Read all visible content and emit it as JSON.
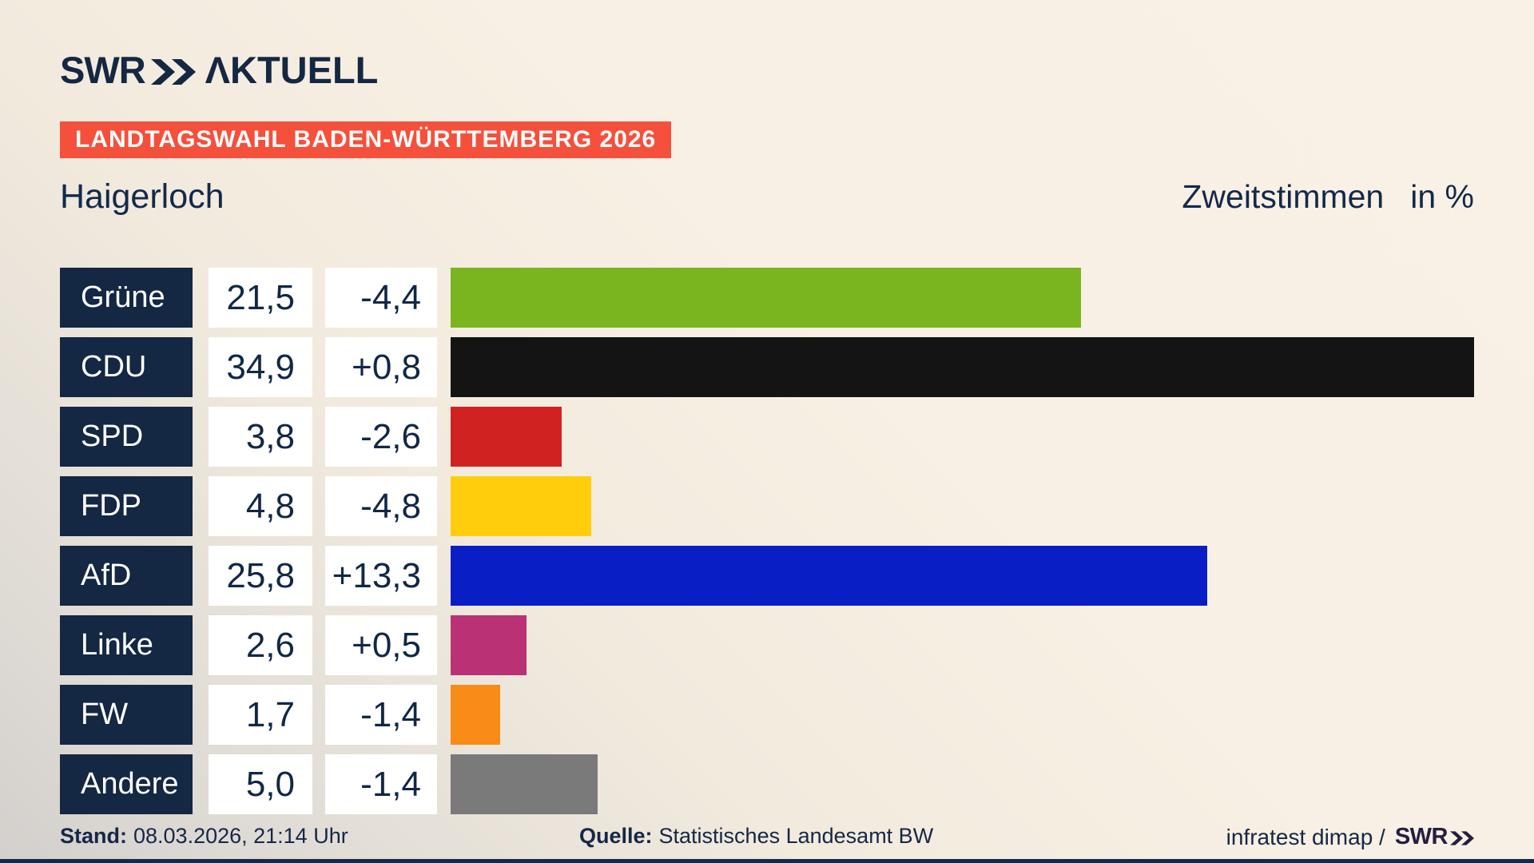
{
  "header": {
    "brand": "SWR",
    "product": "ΛKTUELL"
  },
  "badge": {
    "label": "LANDTAGSWAHL BADEN-WÜRTTEMBERG 2026"
  },
  "title": {
    "region": "Haigerloch",
    "measure": "Zweitstimmen",
    "unit": "in %"
  },
  "chart_data": {
    "type": "bar",
    "orientation": "horizontal",
    "title": "Zweitstimmen in %",
    "region": "Haigerloch",
    "categories": [
      "Grüne",
      "CDU",
      "SPD",
      "FDP",
      "AfD",
      "Linke",
      "FW",
      "Andere"
    ],
    "values": [
      21.5,
      34.9,
      3.8,
      4.8,
      25.8,
      2.6,
      1.7,
      5.0
    ],
    "diffs": [
      -4.4,
      0.8,
      -2.6,
      -4.8,
      13.3,
      0.5,
      -1.4,
      -1.4
    ],
    "bar_colors": [
      "#7ab41e",
      "#141414",
      "#d02321",
      "#ffcd0b",
      "#0a1ec6",
      "#ba3275",
      "#f98b17",
      "#7a7a7a"
    ],
    "xlim": [
      0,
      34.9
    ],
    "grid": false,
    "legend": false,
    "rows": [
      {
        "party": "Grüne",
        "value": 21.5,
        "value_label": "21,5",
        "diff_label": "-4,4",
        "color": "#7ab41e"
      },
      {
        "party": "CDU",
        "value": 34.9,
        "value_label": "34,9",
        "diff_label": "+0,8",
        "color": "#141414"
      },
      {
        "party": "SPD",
        "value": 3.8,
        "value_label": "3,8",
        "diff_label": "-2,6",
        "color": "#d02321"
      },
      {
        "party": "FDP",
        "value": 4.8,
        "value_label": "4,8",
        "diff_label": "-4,8",
        "color": "#ffcd0b"
      },
      {
        "party": "AfD",
        "value": 25.8,
        "value_label": "25,8",
        "diff_label": "+13,3",
        "color": "#0a1ec6"
      },
      {
        "party": "Linke",
        "value": 2.6,
        "value_label": "2,6",
        "diff_label": "+0,5",
        "color": "#ba3275"
      },
      {
        "party": "FW",
        "value": 1.7,
        "value_label": "1,7",
        "diff_label": "-1,4",
        "color": "#f98b17"
      },
      {
        "party": "Andere",
        "value": 5.0,
        "value_label": "5,0",
        "diff_label": "-1,4",
        "color": "#7a7a7a"
      }
    ]
  },
  "footer": {
    "stand_label": "Stand:",
    "stand_value": "08.03.2026, 21:14 Uhr",
    "quelle_label": "Quelle:",
    "quelle_value": "Statistisches Landesamt BW",
    "credit_text": "infratest dimap /",
    "credit_brand": "SWR"
  },
  "colors": {
    "badge_bg": "#f4503c",
    "navy_box": "#142743",
    "text_navy": "#13294b",
    "bottom_strip": "#1a2847",
    "bg_beige": "#f8f0e4",
    "bg_gray": "#d3d0cd"
  }
}
